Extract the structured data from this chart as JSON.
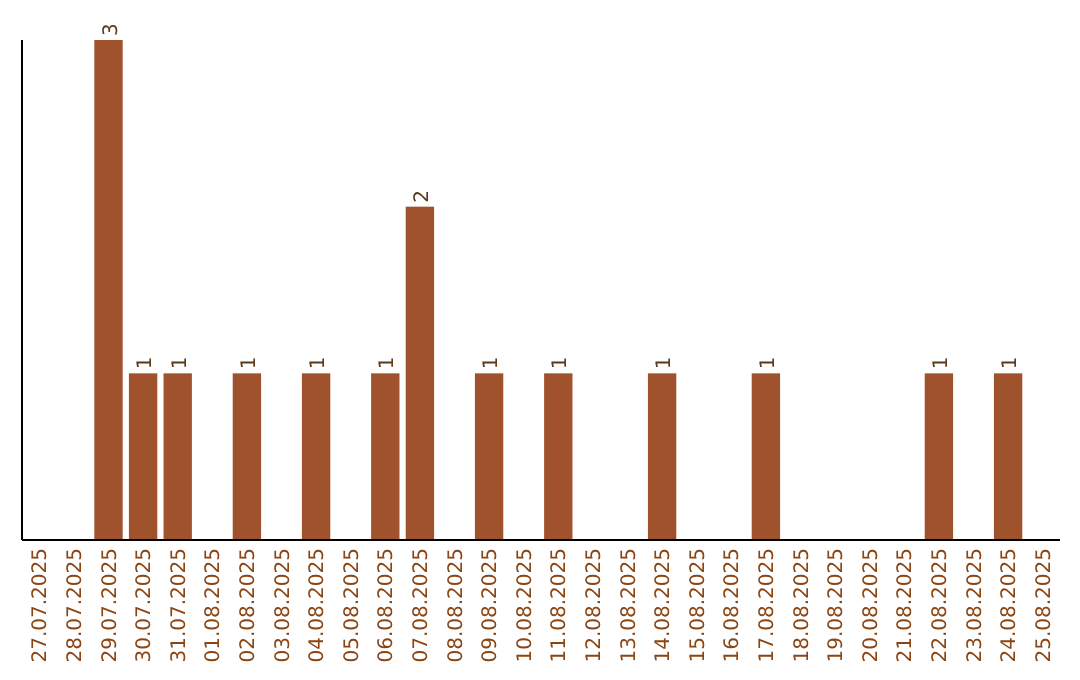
{
  "chart_data": {
    "type": "bar",
    "categories": [
      "27.07.2025",
      "28.07.2025",
      "29.07.2025",
      "30.07.2025",
      "31.07.2025",
      "01.08.2025",
      "02.08.2025",
      "03.08.2025",
      "04.08.2025",
      "05.08.2025",
      "06.08.2025",
      "07.08.2025",
      "08.08.2025",
      "09.08.2025",
      "10.08.2025",
      "11.08.2025",
      "12.08.2025",
      "13.08.2025",
      "14.08.2025",
      "15.08.2025",
      "16.08.2025",
      "17.08.2025",
      "18.08.2025",
      "19.08.2025",
      "20.08.2025",
      "21.08.2025",
      "22.08.2025",
      "23.08.2025",
      "24.08.2025",
      "25.08.2025"
    ],
    "values": [
      0,
      0,
      3,
      1,
      1,
      0,
      1,
      0,
      1,
      0,
      1,
      2,
      0,
      1,
      0,
      1,
      0,
      0,
      1,
      0,
      0,
      1,
      0,
      0,
      0,
      0,
      1,
      0,
      1,
      0
    ],
    "value_labels": [
      null,
      null,
      "3",
      "1",
      "1",
      null,
      "1",
      null,
      "1",
      null,
      "1",
      "2",
      null,
      "1",
      null,
      "1",
      null,
      null,
      "1",
      null,
      null,
      "1",
      null,
      null,
      null,
      null,
      "1",
      null,
      "1",
      null
    ],
    "color": "#a0522d"
  }
}
